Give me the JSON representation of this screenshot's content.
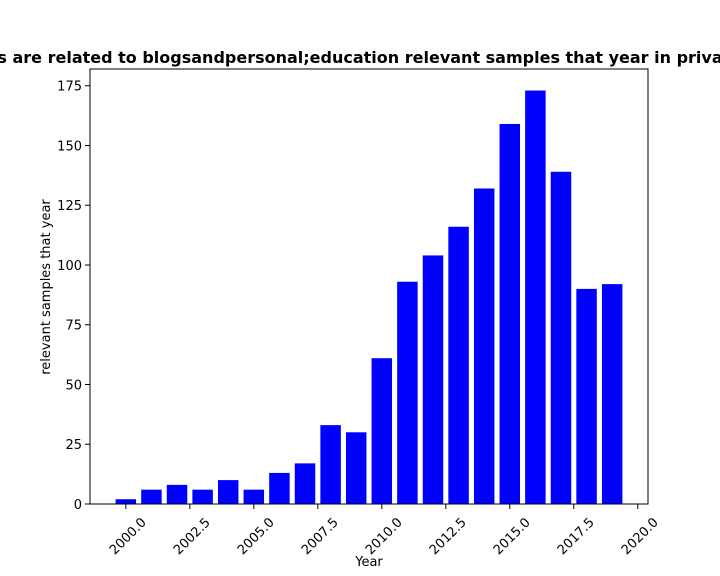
{
  "chart_data": {
    "type": "bar",
    "title": "s are related to blogsandpersonal;education relevant samples that year in priva",
    "xlabel": "Year",
    "ylabel": "relevant samples that year",
    "bar_color": "#0000ff",
    "xlim": [
      1998.6,
      2020.4
    ],
    "ylim": [
      0,
      182
    ],
    "x_ticks": [
      2000.0,
      2002.5,
      2005.0,
      2007.5,
      2010.0,
      2012.5,
      2015.0,
      2017.5,
      2020.0
    ],
    "x_tick_labels": [
      "2000.0",
      "2002.5",
      "2005.0",
      "2007.5",
      "2010.0",
      "2012.5",
      "2015.0",
      "2017.5",
      "2020.0"
    ],
    "y_ticks": [
      0,
      25,
      50,
      75,
      100,
      125,
      150,
      175
    ],
    "y_tick_labels": [
      "0",
      "25",
      "50",
      "75",
      "100",
      "125",
      "150",
      "175"
    ],
    "x": [
      2000,
      2001,
      2002,
      2003,
      2004,
      2005,
      2006,
      2007,
      2008,
      2009,
      2010,
      2011,
      2012,
      2013,
      2014,
      2015,
      2016,
      2017,
      2018,
      2019
    ],
    "values": [
      2,
      6,
      8,
      6,
      10,
      6,
      13,
      17,
      33,
      30,
      61,
      93,
      104,
      116,
      132,
      159,
      173,
      139,
      90,
      92
    ],
    "grid": false,
    "legend": "none"
  }
}
